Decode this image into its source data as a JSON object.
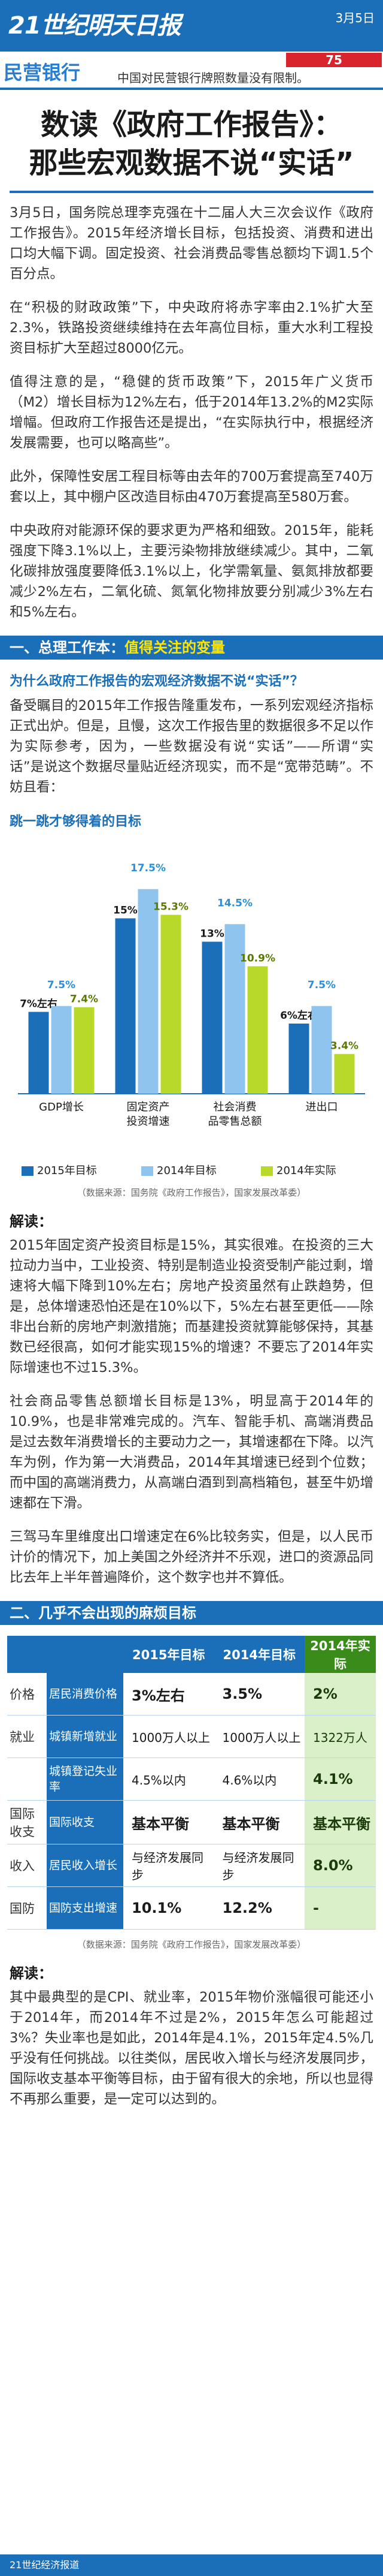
{
  "header": {
    "brand": "21世纪明天日报",
    "date": "3月5日"
  },
  "ad": {
    "bank": "民营银行",
    "number": "75",
    "text": "中国对民营银行牌照数量没有限制。"
  },
  "title": {
    "line1": "数读《政府工作报告》：",
    "line2": "那些宏观数据不说“实话”"
  },
  "intro": [
    "3月5日，国务院总理李克强在十二届人大三次会议作《政府工作报告》。2015年经济增长目标，包括投资、消费和进出口均大幅下调。固定投资、社会消费品零售总额均下调1.5个百分点。",
    "在“积极的财政政策”下，中央政府将赤字率由2.1%扩大至2.3%，铁路投资继续维持在去年高位目标，重大水利工程投资目标扩大至超过8000亿元。",
    "值得注意的是，“稳健的货币政策”下，2015年广义货币（M2）增长目标为12%左右，低于2014年13.2%的M2实际增幅。但政府工作报告还是提出，“在实际执行中，根据经济发展需要，也可以略高些”。",
    "此外，保障性安居工程目标等由去年的700万套提高至740万套以上，其中棚户区改造目标由470万套提高至580万套。",
    "中央政府对能源环保的要求更为严格和细致。2015年，能耗强度下降3.1%以上，主要污染物排放继续减少。其中，二氧化碳排放强度要降低3.1%以上，化学需氧量、氨氮排放都要减少2%左右，二氧化硫、氮氧化物排放要分别减少3%左右和5%左右。"
  ],
  "section1": {
    "prefix": "一、总理工作本：",
    "highlight": "值得关注的变量"
  },
  "section1_sub": "为什么政府工作报告的宏观经济数据不说“实话”？",
  "section1_text": "备受瞩目的2015年工作报告隆重发布，一系列宏观经济指标正式出炉。但是，且慢，这次工作报告里的数据很多不足以作为实际参考，因为，一些数据没有说“实话”——所谓“实话”是说这个数据尽量贴近经济现实，而不是“宽带范畴”。不妨且看：",
  "chart_heading": "跳一跳才够得着的目标",
  "chart_data": {
    "type": "bar",
    "title": "跳一跳才够得着的目标",
    "categories": [
      "GDP增长",
      "固定资产投资增速",
      "社会消费品零售总额",
      "进出口"
    ],
    "series": [
      {
        "name": "2015年目标",
        "values": [
          7,
          15,
          13,
          6
        ],
        "labels": [
          "7%左右",
          "15%",
          "13%",
          "6%左右"
        ]
      },
      {
        "name": "2014年目标",
        "values": [
          7.5,
          17.5,
          14.5,
          7.5
        ],
        "labels": [
          "7.5%",
          "17.5%",
          "14.5%",
          "7.5%"
        ]
      },
      {
        "name": "2014年实际",
        "values": [
          7.4,
          15.3,
          10.9,
          3.4
        ],
        "labels": [
          "7.4%",
          "15.3%",
          "10.9%",
          "3.4%"
        ]
      }
    ],
    "colors": [
      "#1a6fb8",
      "#8fc4ef",
      "#b8d92a"
    ],
    "ylim": [
      0,
      20
    ]
  },
  "chart_source": "（数据来源：国务院《政府工作报告》，国家发展改革委）",
  "jiedu1": "解读：",
  "analysis1": [
    "2015年固定资产投资目标是15%，其实很难。在投资的三大拉动力当中，工业投资、特别是制造业投资受制产能过剩，增速将大幅下降到10%左右；房地产投资虽然有止跌趋势，但是，总体增速恐怕还是在10%以下，5%左右甚至更低——除非出台新的房地产刺激措施；而基建投资就算能够保持，其基数已经很高，如何才能实现15%的增速？不要忘了2014年实际增速也不过15.3%。",
    "社会商品零售总额增长目标是13%，明显高于2014年的10.9%，也是非常难完成的。汽车、智能手机、高端消费品是过去数年消费增长的主要动力之一，其增速都在下降。以汽车为例，作为第一大消费品，2014年其增速已经到个位数；而中国的高端消费力，从高端白酒到到高档箱包，甚至牛奶增速都在下滑。",
    "三驾马车里维度出口增速定在6%比较务实，但是，以人民币计价的情况下，加上美国之外经济并不乐观，进口的资源品同比去年上半年普遍降价，这个数字也并不算低。"
  ],
  "section2": {
    "prefix": "二、几乎不会出现的麻烦目标"
  },
  "table": {
    "headers": [
      "",
      "",
      "2015年目标",
      "2014年目标",
      "2014年实际"
    ],
    "rows": [
      {
        "cat": "价格",
        "item": "居民消费价格",
        "t2015": "3%左右",
        "t2014": "3.5%",
        "actual": "2%"
      },
      {
        "cat": "就业",
        "item": "城镇新增就业",
        "t2015": "1000万人以上",
        "t2014": "1000万人以上",
        "actual": "1322万人"
      },
      {
        "cat": "",
        "item": "城镇登记失业率",
        "t2015": "4.5%以内",
        "t2014": "4.6%以内",
        "actual": "4.1%"
      },
      {
        "cat": "国际收支",
        "item": "国际收支",
        "t2015": "基本平衡",
        "t2014": "基本平衡",
        "actual": "基本平衡"
      },
      {
        "cat": "收入",
        "item": "居民收入增长",
        "t2015": "与经济发展同步",
        "t2014": "与经济发展同步",
        "actual": "8.0%"
      },
      {
        "cat": "国防",
        "item": "国防支出增速",
        "t2015": "10.1%",
        "t2014": "12.2%",
        "actual": "-"
      }
    ]
  },
  "table_source": "（数据来源：国务院《政府工作报告》，国家发展改革委）",
  "jiedu2": "解读：",
  "analysis2": "其中最典型的是CPI、就业率，2015年物价涨幅很可能还小于2014年，而2014年不过是2%，2015年怎么可能超过3%？失业率也是如此，2014年是4.1%，2015年定4.5%几乎没有任何挑战。以往类似，居民收入增长与经济发展同步，国际收支基本平衡等目标，由于留有很大的余地，所以也显得不再那么重要，是一定可以达到的。",
  "footer": "21世纪经济报道"
}
